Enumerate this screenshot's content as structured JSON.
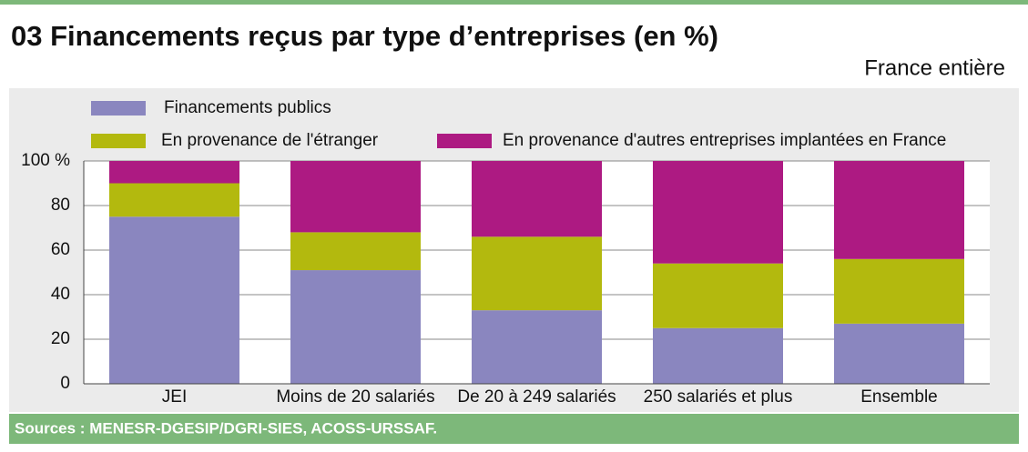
{
  "chart_data": {
    "type": "stacked_bar",
    "title": "03  Financements reçus par type d’entreprises (en %)",
    "subtitle": "France entière",
    "source": "Sources : MENESR-DGESIP/DGRI-SIES,  ACOSS-URSSAF.",
    "categories": [
      "JEI",
      "Moins de 20 salariés",
      "De 20 à 249 salariés",
      "250 salariés et plus",
      "Ensemble"
    ],
    "series": [
      {
        "name": "Financements publics",
        "color": "#8a86bf",
        "values": [
          75,
          51,
          33,
          25,
          27
        ]
      },
      {
        "name": "En provenance de l'étranger",
        "color": "#b3b90e",
        "values": [
          15,
          17,
          33,
          29,
          29
        ]
      },
      {
        "name": "En provenance d'autres entreprises implantées en France",
        "color": "#ad1a82",
        "values": [
          10,
          32,
          34,
          46,
          44
        ]
      }
    ],
    "ylim": [
      0,
      100
    ],
    "yticks": [
      0,
      20,
      40,
      60,
      80,
      {
        "value": 100,
        "label": "100 %"
      }
    ],
    "grid": true
  }
}
